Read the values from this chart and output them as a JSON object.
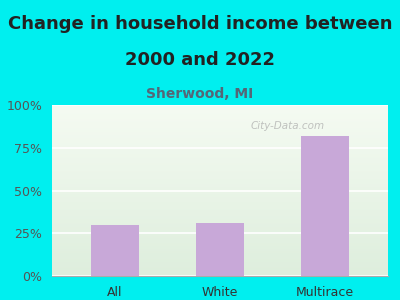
{
  "categories": [
    "All",
    "White",
    "Multirace"
  ],
  "values": [
    30,
    31,
    82
  ],
  "bar_color": "#c8a8d8",
  "title_line1": "Change in household income between",
  "title_line2": "2000 and 2022",
  "subtitle": "Sherwood, MI",
  "background_color": "#00efef",
  "plot_bg_top": "#deeedd",
  "plot_bg_bottom": "#f5fbf2",
  "yticks": [
    0,
    25,
    50,
    75,
    100
  ],
  "ytick_labels": [
    "0%",
    "25%",
    "50%",
    "75%",
    "100%"
  ],
  "title_fontsize": 13,
  "subtitle_fontsize": 10,
  "tick_label_color": "#555555",
  "subtitle_color": "#556677",
  "title_color": "#222222",
  "watermark": "City-Data.com",
  "ylim": [
    0,
    100
  ]
}
